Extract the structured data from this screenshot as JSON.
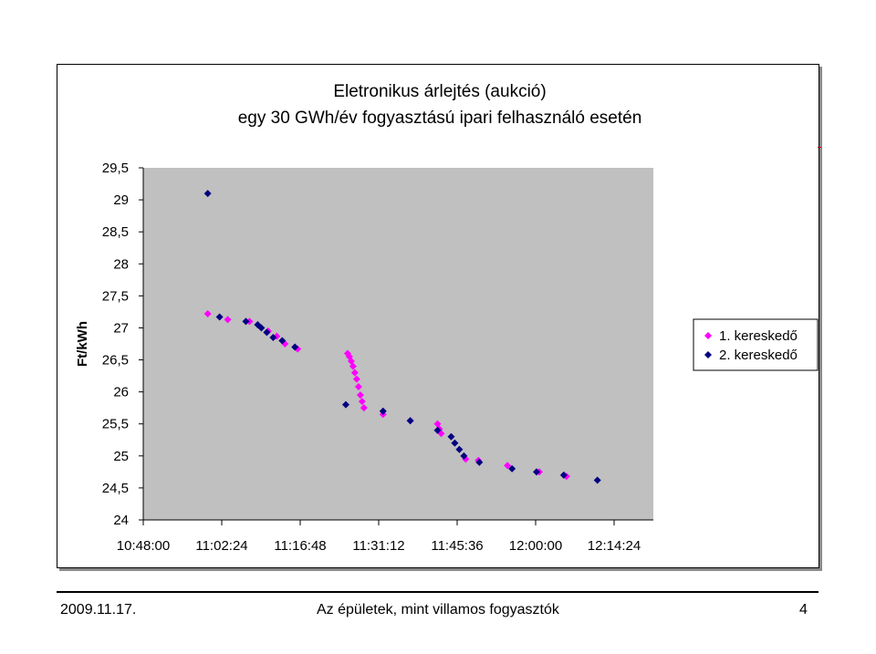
{
  "chart_data": {
    "type": "scatter",
    "title_lines": [
      "Eletronikus árlejtés (aukció)",
      "egy 30 GWh/év fogyasztású ipari felhasználó esetén"
    ],
    "xlabel": "",
    "ylabel": "Ft/kWh",
    "xlim": [
      "10:48:00",
      "12:21:36"
    ],
    "ylim": [
      24,
      29.5
    ],
    "xticks": [
      "10:48:00",
      "11:02:24",
      "11:16:48",
      "11:31:12",
      "11:45:36",
      "12:00:00",
      "12:14:24"
    ],
    "yticks": [
      "24",
      "24,5",
      "25",
      "25,5",
      "26",
      "26,5",
      "27",
      "27,5",
      "28",
      "28,5",
      "29",
      "29,5"
    ],
    "grid": false,
    "legend_position": "right",
    "plot_background": "#c0c0c0",
    "series": [
      {
        "name": "1. kereskedő",
        "color": "#ff00ff",
        "x": [
          "10:59:50",
          "11:03:30",
          "11:07:30",
          "11:10:55",
          "11:12:30",
          "11:14:00",
          "11:16:20",
          "11:25:30",
          "11:25:50",
          "11:26:10",
          "11:26:30",
          "11:26:50",
          "11:27:10",
          "11:27:30",
          "11:27:50",
          "11:28:10",
          "11:28:30",
          "11:32:00",
          "11:37:00",
          "11:42:00",
          "11:42:20",
          "11:42:40",
          "11:47:10",
          "11:49:30",
          "11:54:50",
          "12:00:40",
          "12:05:40"
        ],
        "y": [
          27.22,
          27.13,
          27.1,
          26.95,
          26.87,
          26.75,
          26.67,
          26.6,
          26.55,
          26.48,
          26.4,
          26.3,
          26.2,
          26.08,
          25.95,
          25.85,
          25.75,
          25.65,
          25.55,
          25.5,
          25.42,
          25.35,
          24.95,
          24.93,
          24.85,
          24.75,
          24.68
        ]
      },
      {
        "name": "2. kereskedő",
        "color": "#000080",
        "x": [
          "10:59:50",
          "11:02:00",
          "11:06:50",
          "11:09:00",
          "11:09:40",
          "11:10:40",
          "11:11:50",
          "11:13:30",
          "11:15:50",
          "11:25:10",
          "11:32:00",
          "11:37:00",
          "11:42:00",
          "11:44:30",
          "11:45:10",
          "11:46:00",
          "11:46:50",
          "11:49:40",
          "11:55:40",
          "12:00:10",
          "12:05:10",
          "12:11:20"
        ],
        "y": [
          29.1,
          27.17,
          27.1,
          27.05,
          27.0,
          26.93,
          26.85,
          26.8,
          26.7,
          25.8,
          25.7,
          25.55,
          25.4,
          25.3,
          25.2,
          25.1,
          25.0,
          24.9,
          24.8,
          24.75,
          24.7,
          24.62
        ]
      }
    ]
  },
  "footer": {
    "date": "2009.11.17.",
    "title": "Az épületek, mint villamos fogyasztók",
    "page": "4"
  }
}
